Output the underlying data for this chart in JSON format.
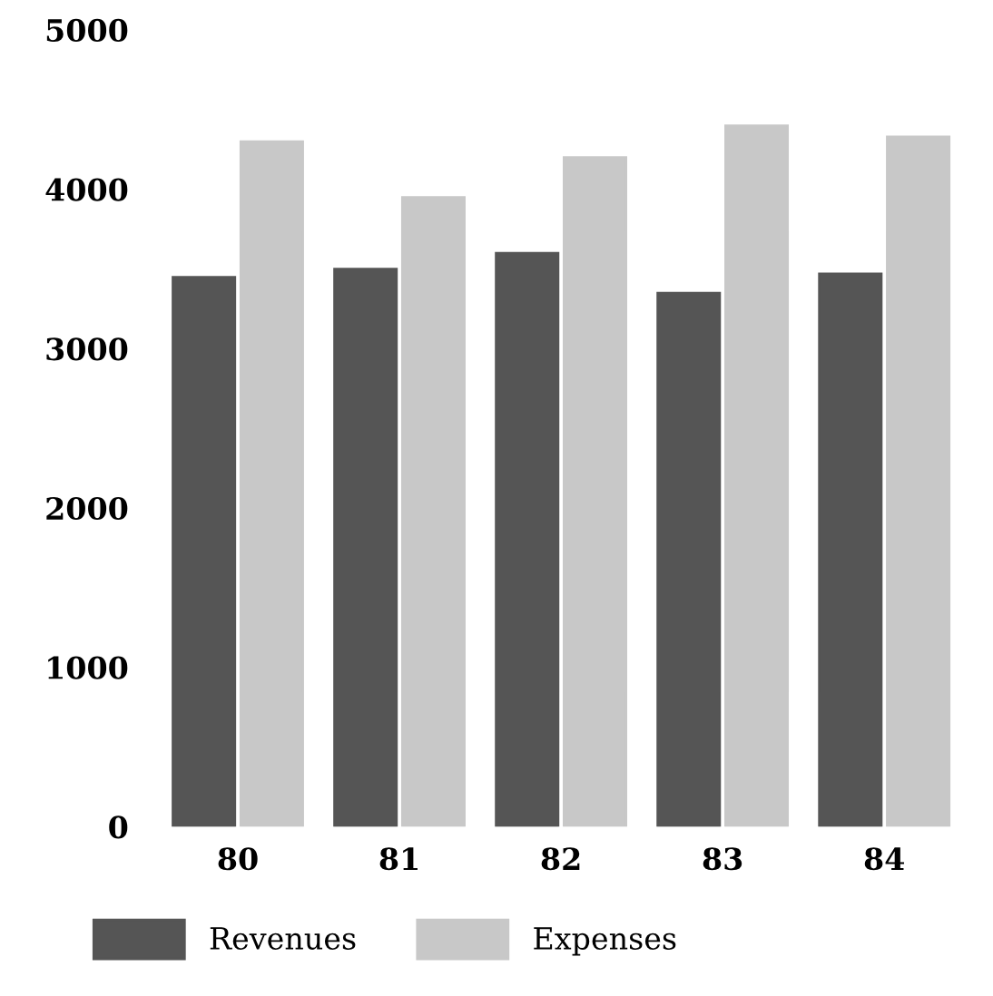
{
  "chart_data": {
    "type": "bar",
    "categories": [
      "80",
      "81",
      "82",
      "83",
      "84"
    ],
    "series": [
      {
        "name": "Revenues",
        "color": "#555555",
        "values": [
          3450,
          3500,
          3600,
          3350,
          3470
        ]
      },
      {
        "name": "Expenses",
        "color": "#c8c8c8",
        "values": [
          4300,
          3950,
          4200,
          4400,
          4330
        ]
      }
    ],
    "ylim": [
      0,
      5000
    ],
    "yticks": [
      0,
      1000,
      2000,
      3000,
      4000,
      5000
    ],
    "grid": false,
    "legend": "bottom"
  }
}
